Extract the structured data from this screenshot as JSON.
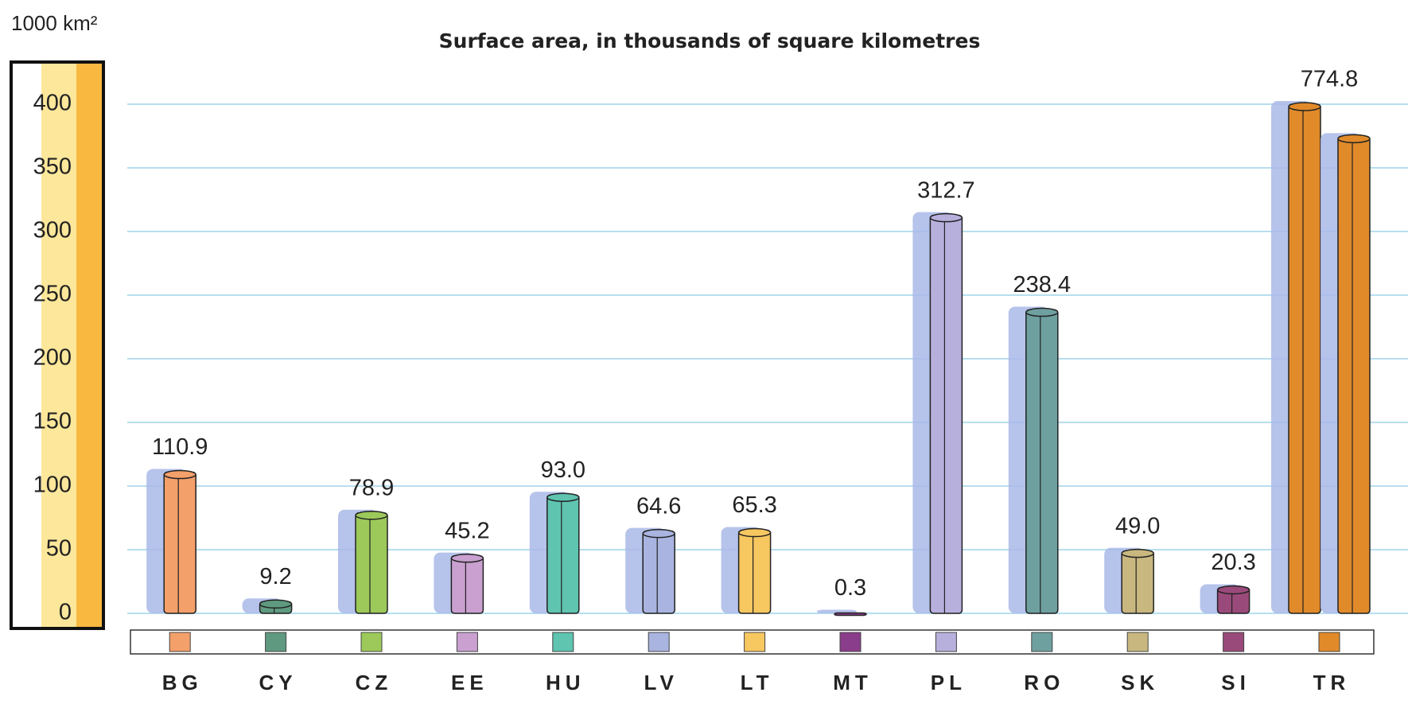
{
  "chart_data": {
    "type": "bar",
    "title": "Surface area, in thousands of square kilometres",
    "y_axis_label": "1000 km²",
    "categories": [
      "BG",
      "CY",
      "CZ",
      "EE",
      "HU",
      "LV",
      "LT",
      "MT",
      "PL",
      "RO",
      "SK",
      "SI",
      "TR"
    ],
    "values": [
      110.9,
      9.2,
      78.9,
      45.2,
      93.0,
      64.6,
      65.3,
      0.3,
      312.7,
      238.4,
      49.0,
      20.3,
      774.8
    ],
    "value_labels": [
      "110.9",
      "9.2",
      "78.9",
      "45.2",
      "93.0",
      "64.6",
      "65.3",
      "0.3",
      "312.7",
      "238.4",
      "49.0",
      "20.3",
      "774.8"
    ],
    "colors": [
      "#f4a06a",
      "#5f9a80",
      "#9cc95a",
      "#c9a0d0",
      "#5fc4b0",
      "#a9b4e0",
      "#f7c760",
      "#8a3d8a",
      "#b8b0dc",
      "#6fa0a0",
      "#c8b880",
      "#9a4a7a",
      "#e08a2a"
    ],
    "ylim": [
      0,
      400
    ],
    "yticks": [
      0,
      50,
      100,
      150,
      200,
      250,
      300,
      350,
      400
    ],
    "grid": true
  }
}
